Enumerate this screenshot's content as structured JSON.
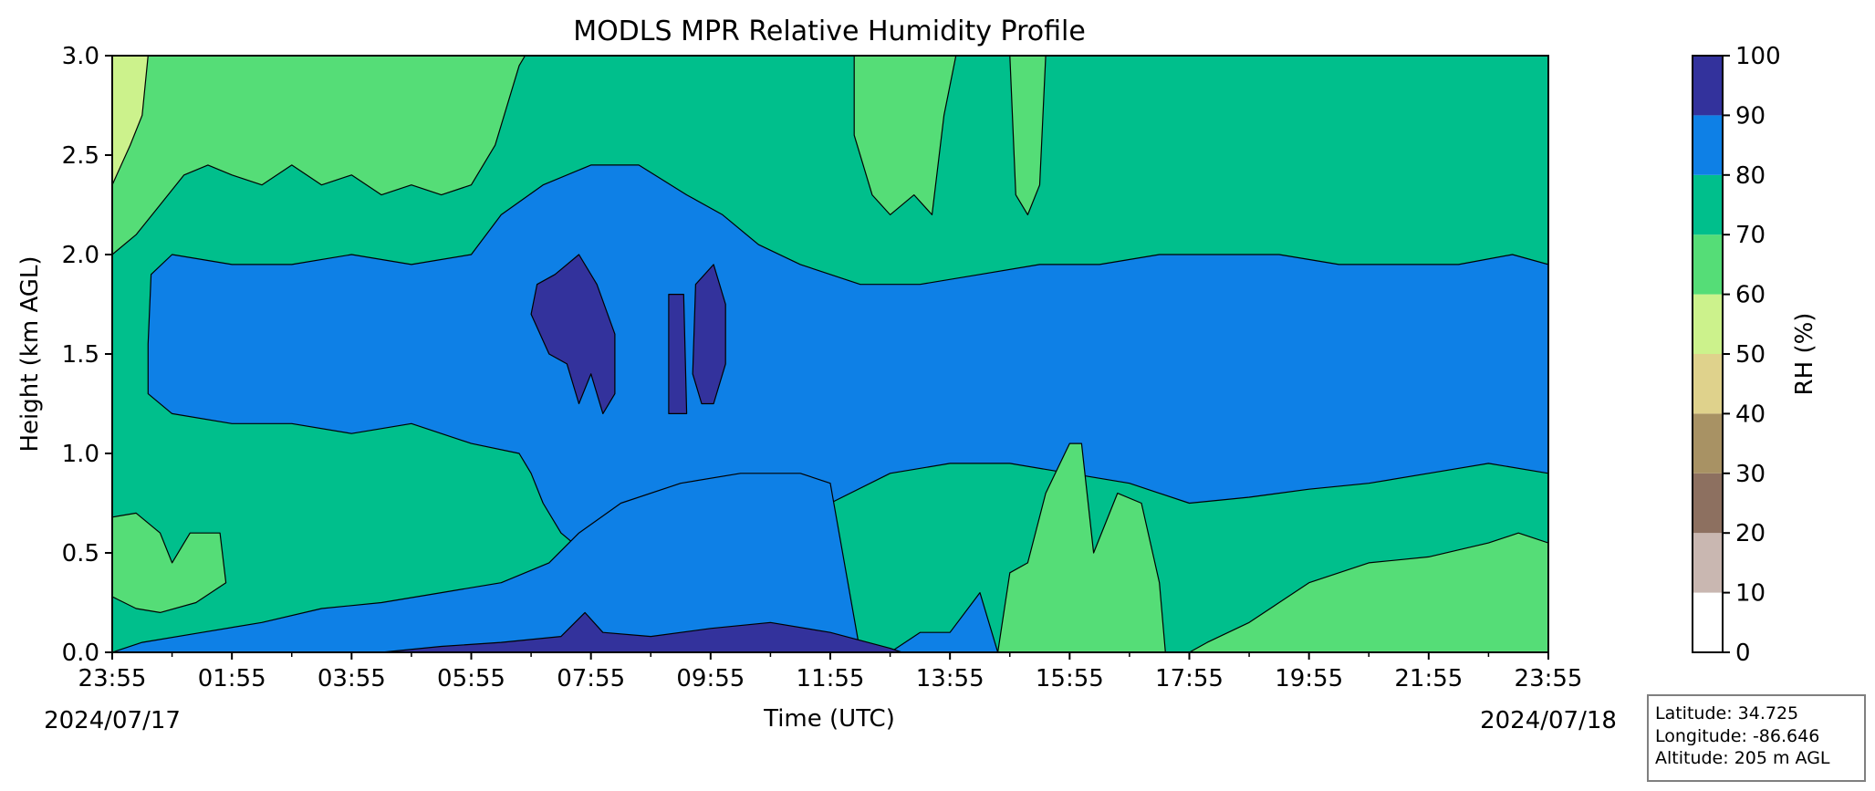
{
  "chart_data": {
    "type": "contour",
    "title": "MODLS MPR Relative Humidity Profile",
    "xlabel": "Time (UTC)",
    "ylabel": "Height (km AGL)",
    "x_tick_labels": [
      "23:55",
      "01:55",
      "03:55",
      "05:55",
      "07:55",
      "09:55",
      "11:55",
      "13:55",
      "15:55",
      "17:55",
      "19:55",
      "21:55",
      "23:55"
    ],
    "x_range_hours": [
      0,
      24
    ],
    "start_date": "2024/07/17",
    "end_date": "2024/07/18",
    "ylim": [
      0,
      3.0
    ],
    "y_ticks": [
      0.0,
      0.5,
      1.0,
      1.5,
      2.0,
      2.5,
      3.0
    ],
    "y_tick_labels": [
      "0.0",
      "0.5",
      "1.0",
      "1.5",
      "2.0",
      "2.5",
      "3.0"
    ],
    "colorbar": {
      "label": "RH (%)",
      "levels": [
        0,
        10,
        20,
        30,
        40,
        50,
        60,
        70,
        80,
        90,
        100
      ],
      "tick_labels": [
        "0",
        "10",
        "20",
        "30",
        "40",
        "50",
        "60",
        "70",
        "80",
        "90",
        "100"
      ],
      "colors": [
        "#ffffff",
        "#c9b7b1",
        "#8d7060",
        "#a89264",
        "#dfd28c",
        "#ccf28c",
        "#55dd77",
        "#00bf8c",
        "#0e80e6",
        "#33329c"
      ]
    },
    "regions": [
      {
        "rh_band": "70-80",
        "color": "#00bf8c",
        "description": "background",
        "polygon": [
          [
            0,
            0
          ],
          [
            24,
            0
          ],
          [
            24,
            3.0
          ],
          [
            0,
            3.0
          ]
        ]
      },
      {
        "rh_band": "60-70",
        "color": "#55dd77",
        "polygon": [
          [
            0,
            3.0
          ],
          [
            0,
            2.0
          ],
          [
            0.4,
            2.1
          ],
          [
            0.8,
            2.25
          ],
          [
            1.2,
            2.4
          ],
          [
            1.6,
            2.45
          ],
          [
            2.0,
            2.4
          ],
          [
            2.5,
            2.35
          ],
          [
            3.0,
            2.45
          ],
          [
            3.5,
            2.35
          ],
          [
            4.0,
            2.4
          ],
          [
            4.5,
            2.3
          ],
          [
            5.0,
            2.35
          ],
          [
            5.5,
            2.3
          ],
          [
            6.0,
            2.35
          ],
          [
            6.4,
            2.55
          ],
          [
            6.8,
            2.95
          ],
          [
            6.9,
            3.0
          ]
        ]
      },
      {
        "rh_band": "50-60",
        "color": "#ccf28c",
        "polygon": [
          [
            0,
            3.0
          ],
          [
            0,
            2.35
          ],
          [
            0.3,
            2.55
          ],
          [
            0.5,
            2.7
          ],
          [
            0.6,
            3.0
          ]
        ]
      },
      {
        "rh_band": "60-70",
        "color": "#55dd77",
        "polygon": [
          [
            12.4,
            3.0
          ],
          [
            12.4,
            2.6
          ],
          [
            12.7,
            2.3
          ],
          [
            13.0,
            2.2
          ],
          [
            13.4,
            2.3
          ],
          [
            13.7,
            2.2
          ],
          [
            13.9,
            2.7
          ],
          [
            14.1,
            3.0
          ]
        ]
      },
      {
        "rh_band": "60-70",
        "color": "#55dd77",
        "polygon": [
          [
            15.0,
            3.0
          ],
          [
            15.1,
            2.3
          ],
          [
            15.3,
            2.2
          ],
          [
            15.5,
            2.35
          ],
          [
            15.6,
            3.0
          ]
        ]
      },
      {
        "rh_band": "80-90",
        "color": "#0e80e6",
        "polygon": [
          [
            0.6,
            1.55
          ],
          [
            0.65,
            1.9
          ],
          [
            1.0,
            2.0
          ],
          [
            2.0,
            1.95
          ],
          [
            3.0,
            1.95
          ],
          [
            4.0,
            2.0
          ],
          [
            5.0,
            1.95
          ],
          [
            6.0,
            2.0
          ],
          [
            6.5,
            2.2
          ],
          [
            7.2,
            2.35
          ],
          [
            8.0,
            2.45
          ],
          [
            8.8,
            2.45
          ],
          [
            9.6,
            2.3
          ],
          [
            10.2,
            2.2
          ],
          [
            10.8,
            2.05
          ],
          [
            11.5,
            1.95
          ],
          [
            12.5,
            1.85
          ],
          [
            13.5,
            1.85
          ],
          [
            14.5,
            1.9
          ],
          [
            15.5,
            1.95
          ],
          [
            16.5,
            1.95
          ],
          [
            17.5,
            2.0
          ],
          [
            18.5,
            2.0
          ],
          [
            19.5,
            2.0
          ],
          [
            20.5,
            1.95
          ],
          [
            21.5,
            1.95
          ],
          [
            22.5,
            1.95
          ],
          [
            23.4,
            2.0
          ],
          [
            24,
            1.95
          ],
          [
            24,
            0.9
          ],
          [
            23.0,
            0.95
          ],
          [
            22.0,
            0.9
          ],
          [
            21.0,
            0.85
          ],
          [
            20.0,
            0.82
          ],
          [
            19.0,
            0.78
          ],
          [
            18.0,
            0.75
          ],
          [
            17.0,
            0.85
          ],
          [
            16.0,
            0.9
          ],
          [
            15.0,
            0.95
          ],
          [
            14.0,
            0.95
          ],
          [
            13.0,
            0.9
          ],
          [
            12.0,
            0.75
          ],
          [
            11.2,
            0.55
          ],
          [
            10.5,
            0.4
          ],
          [
            9.5,
            0.3
          ],
          [
            8.5,
            0.2
          ],
          [
            7.5,
            0.15
          ],
          [
            6.5,
            0.12
          ],
          [
            5.5,
            0.1
          ],
          [
            4.5,
            0.08
          ],
          [
            3.5,
            0.06
          ],
          [
            2.5,
            0.04
          ],
          [
            1.5,
            0.02
          ],
          [
            0.5,
            0.01
          ],
          [
            0,
            0
          ],
          [
            24,
            0
          ],
          [
            24,
            0.9
          ],
          [
            24,
            0
          ],
          [
            7.8,
            0
          ],
          [
            7.9,
            0.5
          ],
          [
            7.5,
            0.6
          ],
          [
            7.2,
            0.75
          ],
          [
            7.0,
            0.9
          ],
          [
            6.8,
            1.0
          ],
          [
            6.0,
            1.05
          ],
          [
            5.0,
            1.15
          ],
          [
            4.0,
            1.1
          ],
          [
            3.0,
            1.15
          ],
          [
            2.0,
            1.15
          ],
          [
            1.0,
            1.2
          ],
          [
            0.6,
            1.3
          ]
        ]
      },
      {
        "rh_band": "80-90",
        "color": "#0e80e6",
        "polygon": [
          [
            0,
            0
          ],
          [
            0.5,
            0.05
          ],
          [
            1.5,
            0.1
          ],
          [
            2.5,
            0.15
          ],
          [
            3.5,
            0.22
          ],
          [
            4.5,
            0.25
          ],
          [
            5.5,
            0.3
          ],
          [
            6.5,
            0.35
          ],
          [
            7.3,
            0.45
          ],
          [
            7.8,
            0.6
          ],
          [
            8.5,
            0.75
          ],
          [
            9.5,
            0.85
          ],
          [
            10.5,
            0.9
          ],
          [
            11.5,
            0.9
          ],
          [
            12.0,
            0.85
          ],
          [
            12.5,
            0
          ],
          [
            13.0,
            0
          ],
          [
            13.5,
            0.1
          ],
          [
            14.0,
            0.1
          ],
          [
            14.5,
            0.3
          ],
          [
            14.8,
            0
          ],
          [
            24,
            0
          ],
          [
            24,
            0
          ],
          [
            0,
            0
          ]
        ]
      },
      {
        "rh_band": "90-100",
        "color": "#33329c",
        "polygon": [
          [
            4.5,
            0
          ],
          [
            5.5,
            0.03
          ],
          [
            6.5,
            0.05
          ],
          [
            7.5,
            0.08
          ],
          [
            7.9,
            0.2
          ],
          [
            8.2,
            0.1
          ],
          [
            9.0,
            0.08
          ],
          [
            10.0,
            0.12
          ],
          [
            11.0,
            0.15
          ],
          [
            12.0,
            0.1
          ],
          [
            13.0,
            0.02
          ],
          [
            13.2,
            0
          ]
        ]
      },
      {
        "rh_band": "90-100",
        "color": "#33329c",
        "polygon": [
          [
            7.0,
            1.7
          ],
          [
            7.1,
            1.85
          ],
          [
            7.4,
            1.9
          ],
          [
            7.8,
            2.0
          ],
          [
            8.1,
            1.85
          ],
          [
            8.4,
            1.6
          ],
          [
            8.4,
            1.3
          ],
          [
            8.2,
            1.2
          ],
          [
            8.0,
            1.4
          ],
          [
            7.8,
            1.25
          ],
          [
            7.6,
            1.45
          ],
          [
            7.3,
            1.5
          ]
        ]
      },
      {
        "rh_band": "90-100",
        "color": "#33329c",
        "polygon": [
          [
            9.3,
            1.2
          ],
          [
            9.3,
            1.8
          ],
          [
            9.55,
            1.8
          ],
          [
            9.6,
            1.2
          ]
        ]
      },
      {
        "rh_band": "90-100",
        "color": "#33329c",
        "polygon": [
          [
            9.7,
            1.4
          ],
          [
            9.75,
            1.85
          ],
          [
            10.05,
            1.95
          ],
          [
            10.25,
            1.75
          ],
          [
            10.25,
            1.45
          ],
          [
            10.05,
            1.25
          ],
          [
            9.85,
            1.25
          ]
        ]
      },
      {
        "rh_band": "60-70",
        "color": "#55dd77",
        "polygon": [
          [
            0,
            0.28
          ],
          [
            0,
            0.68
          ],
          [
            0.4,
            0.7
          ],
          [
            0.8,
            0.6
          ],
          [
            1.0,
            0.45
          ],
          [
            1.3,
            0.6
          ],
          [
            1.8,
            0.6
          ],
          [
            1.9,
            0.35
          ],
          [
            1.4,
            0.25
          ],
          [
            0.8,
            0.2
          ],
          [
            0.4,
            0.22
          ]
        ]
      },
      {
        "rh_band": "60-70",
        "color": "#55dd77",
        "polygon": [
          [
            14.8,
            0
          ],
          [
            15.0,
            0.4
          ],
          [
            15.3,
            0.45
          ],
          [
            15.6,
            0.8
          ],
          [
            16.0,
            1.05
          ],
          [
            16.2,
            1.05
          ],
          [
            16.4,
            0.5
          ],
          [
            16.8,
            0.8
          ],
          [
            17.2,
            0.75
          ],
          [
            17.5,
            0.35
          ],
          [
            17.6,
            0
          ]
        ]
      },
      {
        "rh_band": "60-70",
        "color": "#55dd77",
        "polygon": [
          [
            18.0,
            0
          ],
          [
            18.3,
            0.05
          ],
          [
            19.0,
            0.15
          ],
          [
            19.5,
            0.25
          ],
          [
            20.0,
            0.35
          ],
          [
            21.0,
            0.45
          ],
          [
            22.0,
            0.48
          ],
          [
            23.0,
            0.55
          ],
          [
            23.5,
            0.6
          ],
          [
            24,
            0.55
          ],
          [
            24,
            0
          ]
        ]
      }
    ]
  },
  "info_box": {
    "latitude": "Latitude: 34.725",
    "longitude": "Longitude: -86.646",
    "altitude": "Altitude: 205 m AGL"
  }
}
